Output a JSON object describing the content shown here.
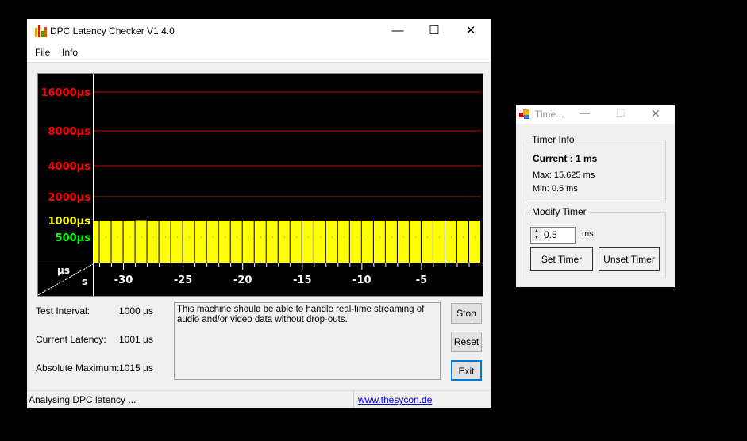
{
  "main_window": {
    "title": "DPC Latency Checker V1.4.0",
    "app-icon": "bar-chart-icon",
    "menu": [
      "File",
      "Info"
    ],
    "controls": {
      "minimize": "—",
      "maximize": "☐",
      "close": "✕"
    },
    "stats": [
      {
        "label": "Test Interval:",
        "value": "1000 µs"
      },
      {
        "label": "Current Latency:",
        "value": "1001 µs"
      },
      {
        "label": "Absolute Maximum:",
        "value": "1015 µs"
      }
    ],
    "message": "This machine should be able to handle real-time streaming of audio and/or video data without drop-outs.",
    "buttons": {
      "stop": "Stop",
      "reset": "Reset",
      "exit": "Exit"
    },
    "status": "Analysing DPC latency ...",
    "link": "www.thesycon.de"
  },
  "chart_data": {
    "type": "bar",
    "corner_labels": {
      "y_unit": "µs",
      "x_unit": "s"
    },
    "y_ticks": [
      {
        "value": 16000,
        "label": "16000µs",
        "color": "#ff0000"
      },
      {
        "value": 8000,
        "label": "8000µs",
        "color": "#ff0000"
      },
      {
        "value": 4000,
        "label": "4000µs",
        "color": "#ff0000"
      },
      {
        "value": 2000,
        "label": "2000µs",
        "color": "#ff0000"
      },
      {
        "value": 1000,
        "label": "1000µs",
        "color": "#ffff00"
      },
      {
        "value": 500,
        "label": "500µs",
        "color": "#00ff00"
      }
    ],
    "x_ticks": [
      -30,
      -25,
      -20,
      -15,
      -10,
      -5
    ],
    "xlim": [
      -32.5,
      0
    ],
    "bar_start_seconds": [
      -33,
      -32,
      -31,
      -30,
      -29,
      -28,
      -27,
      -26,
      -25,
      -24,
      -23,
      -22,
      -21,
      -20,
      -19,
      -18,
      -17,
      -16,
      -15,
      -14,
      -13,
      -12,
      -11,
      -10,
      -9,
      -8,
      -7,
      -6,
      -5,
      -4,
      -3,
      -2,
      -1
    ],
    "values": [
      1000,
      1000,
      1000,
      1000,
      1015,
      1000,
      1000,
      1000,
      1000,
      1000,
      1000,
      1000,
      1000,
      1000,
      1000,
      1000,
      1000,
      1000,
      1000,
      1000,
      1000,
      1000,
      1000,
      1000,
      1000,
      1000,
      1000,
      1000,
      1000,
      1000,
      1000,
      1000,
      1000
    ],
    "bar_color": "#ffff00",
    "background": "#000000"
  },
  "timer_window": {
    "title": "Time...",
    "timer_info": {
      "heading": "Timer Info",
      "current": "Current : 1 ms",
      "max": "Max: 15.625 ms",
      "min": "Min: 0.5 ms"
    },
    "modify": {
      "heading": "Modify Timer",
      "value": "0.5",
      "unit": "ms",
      "set": "Set Timer",
      "unset": "Unset Timer"
    }
  }
}
